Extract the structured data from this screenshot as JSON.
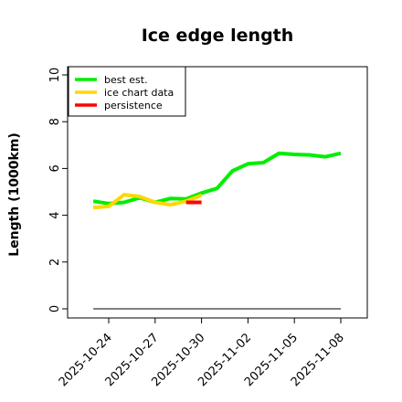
{
  "chart_data": {
    "type": "line",
    "title": "Ice edge length",
    "xlabel": "",
    "ylabel": "Length (1000km)",
    "ylim": [
      0,
      10
    ],
    "yticks": [
      0,
      2,
      4,
      6,
      8,
      10
    ],
    "xlim": [
      "2025-10-21",
      "2025-11-10"
    ],
    "xticks": [
      "2025-10-24",
      "2025-10-27",
      "2025-10-30",
      "2025-11-02",
      "2025-11-05",
      "2025-11-08"
    ],
    "grid": false,
    "legend_position": "top-left",
    "series": [
      {
        "name": "best est.",
        "color": "#00ee00",
        "x": [
          "2025-10-23",
          "2025-10-24",
          "2025-10-25",
          "2025-10-26",
          "2025-10-27",
          "2025-10-28",
          "2025-10-29",
          "2025-10-30",
          "2025-10-31",
          "2025-11-01",
          "2025-11-02",
          "2025-11-03",
          "2025-11-04",
          "2025-11-05",
          "2025-11-06",
          "2025-11-07",
          "2025-11-08"
        ],
        "values": [
          4.6,
          4.5,
          4.55,
          4.75,
          4.55,
          4.72,
          4.7,
          4.95,
          5.15,
          5.9,
          6.2,
          6.25,
          6.65,
          6.6,
          6.58,
          6.5,
          6.65
        ]
      },
      {
        "name": "ice chart data",
        "color": "#ffd700",
        "x": [
          "2025-10-23",
          "2025-10-24",
          "2025-10-25",
          "2025-10-26",
          "2025-10-27",
          "2025-10-28",
          "2025-10-29",
          "2025-10-30"
        ],
        "values": [
          4.33,
          4.38,
          4.88,
          4.8,
          4.55,
          4.45,
          4.6,
          4.85
        ]
      },
      {
        "name": "persistence",
        "color": "#ff0000",
        "x": [
          "2025-10-29",
          "2025-10-30"
        ],
        "values": [
          4.55,
          4.55
        ]
      },
      {
        "color": "#555555",
        "x": [
          "2025-10-23",
          "2025-11-08"
        ],
        "values": [
          0,
          0
        ]
      }
    ]
  }
}
